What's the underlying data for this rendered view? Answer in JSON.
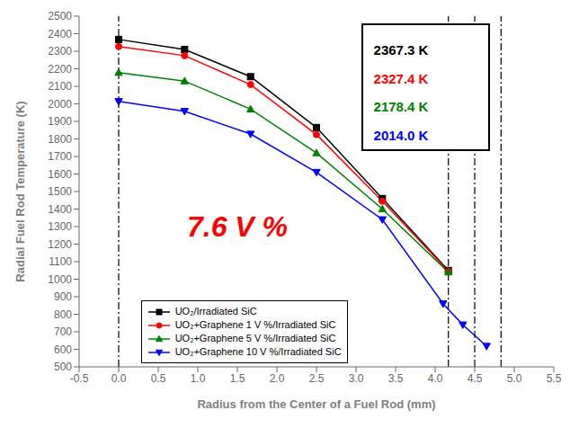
{
  "chart_data": {
    "type": "line",
    "xlabel": "Radius from the Center of a Fuel Rod (mm)",
    "ylabel": "Radial Fuel Rod Temperature (K)",
    "xlim": [
      -0.5,
      5.5
    ],
    "ylim": [
      500,
      2500
    ],
    "xticks": [
      -0.5,
      {
        "value": 0,
        "label": "0.0"
      },
      0.5,
      {
        "value": 1,
        "label": "1.0"
      },
      1.5,
      {
        "value": 2,
        "label": "2.0"
      },
      2.5,
      {
        "value": 3,
        "label": "3.0"
      },
      3.5,
      {
        "value": 4,
        "label": "4.0"
      },
      4.5,
      {
        "value": 5,
        "label": "5.0"
      },
      5.5
    ],
    "yticks": [
      500,
      600,
      700,
      800,
      900,
      1000,
      1100,
      1200,
      1300,
      1400,
      1500,
      1600,
      1700,
      1800,
      1900,
      2000,
      2100,
      2200,
      2300,
      2400,
      2500
    ],
    "grid": false,
    "legend": "lower left",
    "series": [
      {
        "name": "UO₂/Irradiated SiC",
        "color": "black",
        "marker": "square",
        "x": [
          0.0,
          0.833,
          1.667,
          2.5,
          3.333,
          4.167
        ],
        "values": [
          2367.3,
          2310.0,
          2155.0,
          1865.0,
          1460.0,
          1050.0
        ]
      },
      {
        "name": "UO₂+Graphene 1 V %/Irradiated SiC",
        "color": "red",
        "marker": "circle",
        "x": [
          0.0,
          0.833,
          1.667,
          2.5,
          3.333,
          4.167
        ],
        "values": [
          2327.4,
          2275.0,
          2110.0,
          1825.0,
          1445.0,
          1045.0
        ]
      },
      {
        "name": "UO₂+Graphene 5 V %/Irradiated SiC",
        "color": "green",
        "marker": "triangle-up",
        "x": [
          0.0,
          0.833,
          1.667,
          2.5,
          3.333,
          4.167
        ],
        "values": [
          2178.4,
          2130.0,
          1970.0,
          1720.0,
          1400.0,
          1040.0
        ]
      },
      {
        "name": "UO₂+Graphene 10 V %/Irradiated SiC",
        "color": "blue",
        "marker": "triangle-down",
        "x": [
          0.0,
          0.833,
          1.667,
          2.5,
          3.333,
          4.1,
          4.35,
          4.65
        ],
        "values": [
          2014.0,
          1958.0,
          1828.0,
          1610.0,
          1340.0,
          860.0,
          740.0,
          618.0
        ]
      }
    ],
    "vlines": {
      "x": [
        0.0,
        4.167,
        4.5,
        4.833
      ],
      "line_style": "dashdot",
      "color": "black"
    },
    "annotations": [
      {
        "text": "7.6 V %",
        "x": 1.5,
        "y": 1300,
        "color": "red"
      }
    ],
    "box": [
      {
        "text": "2367.3 K",
        "color": "black"
      },
      {
        "text": "2327.4 K",
        "color": "red"
      },
      {
        "text": "2178.4 K",
        "color": "green"
      },
      {
        "text": "2014.0 K",
        "color": "blue"
      }
    ]
  }
}
